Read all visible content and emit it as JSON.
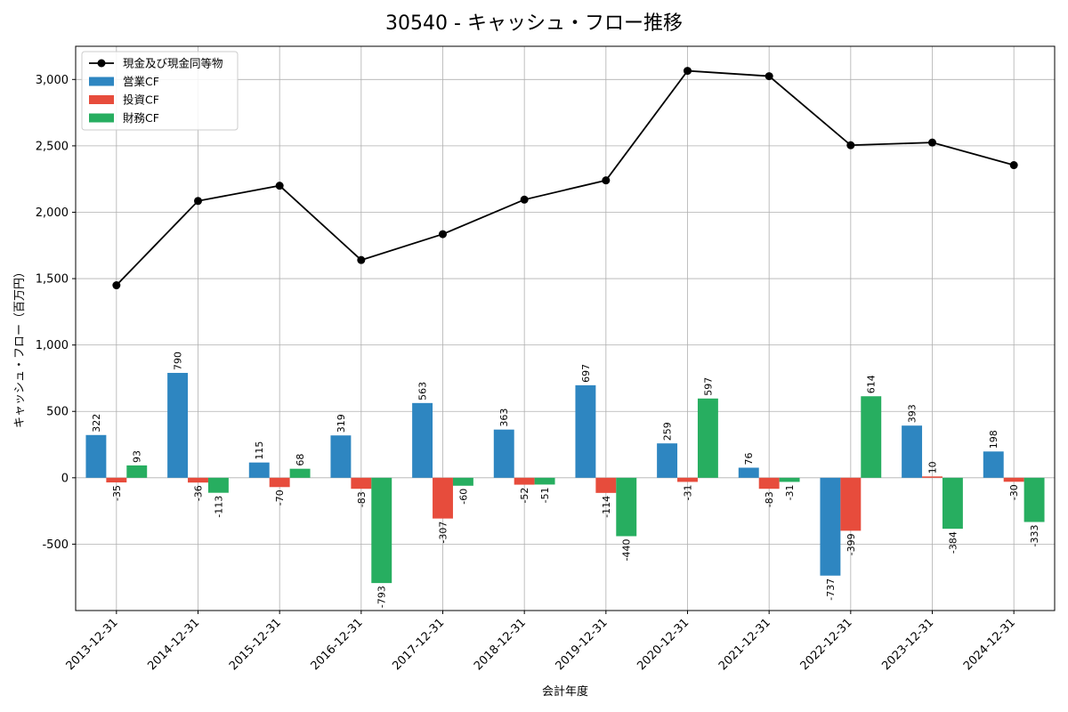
{
  "chart_data": {
    "type": "bar",
    "title": "30540 - キャッシュ・フロー推移",
    "xlabel": "会計年度",
    "ylabel": "キャッシュ・フロー（百万円）",
    "categories": [
      "2013-12-31",
      "2014-12-31",
      "2015-12-31",
      "2016-12-31",
      "2017-12-31",
      "2018-12-31",
      "2019-12-31",
      "2020-12-31",
      "2021-12-31",
      "2022-12-31",
      "2023-12-31",
      "2024-12-31"
    ],
    "series": [
      {
        "name": "営業CF",
        "kind": "bar",
        "color": "#2e86c1",
        "values": [
          322,
          790,
          115,
          319,
          563,
          363,
          697,
          259,
          76,
          -737,
          393,
          198
        ]
      },
      {
        "name": "投資CF",
        "kind": "bar",
        "color": "#e74c3c",
        "values": [
          -35,
          -36,
          -70,
          -83,
          -307,
          -52,
          -114,
          -31,
          -83,
          -399,
          10,
          -30
        ]
      },
      {
        "name": "財務CF",
        "kind": "bar",
        "color": "#27ae60",
        "values": [
          93,
          -113,
          68,
          -793,
          -60,
          -51,
          -440,
          597,
          -31,
          614,
          -384,
          -333
        ]
      },
      {
        "name": "現金及び現金同等物",
        "kind": "line",
        "color": "#000000",
        "values": [
          1450,
          2085,
          2200,
          1640,
          1835,
          2095,
          2240,
          3065,
          3025,
          2505,
          2525,
          2355
        ]
      }
    ],
    "ylim": [
      -1000,
      3250
    ],
    "yticks": [
      -500,
      0,
      500,
      1000,
      1500,
      2000,
      2500,
      3000
    ],
    "ytick_labels": [
      "-500",
      "0",
      "500",
      "1,000",
      "1,500",
      "2,000",
      "2,500",
      "3,000"
    ],
    "legend_position": "top-left",
    "grid": true
  }
}
